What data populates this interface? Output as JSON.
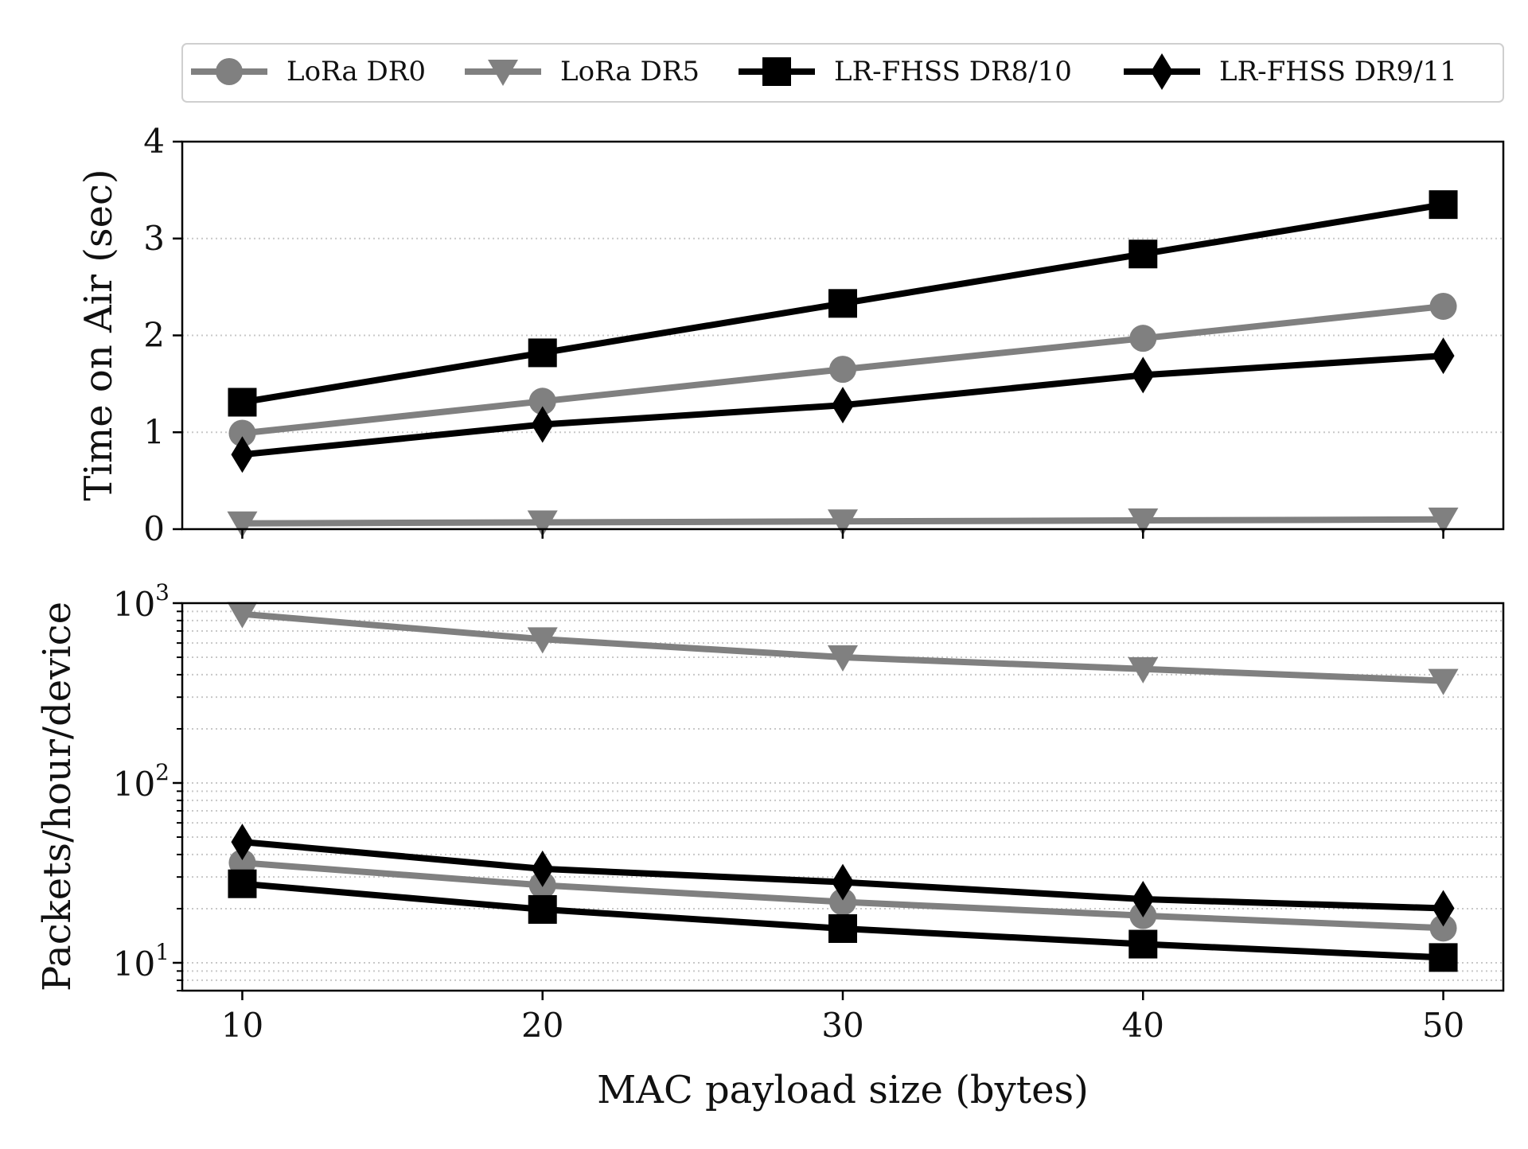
{
  "legend": {
    "placement": "top",
    "entries": [
      {
        "label": "LoRa DR0",
        "series": 0
      },
      {
        "label": "LoRa DR5",
        "series": 1
      },
      {
        "label": "LR-FHSS DR8/10",
        "series": 2
      },
      {
        "label": "LR-FHSS DR9/11",
        "series": 3
      }
    ]
  },
  "style": {
    "series_colors": [
      "#808080",
      "#808080",
      "#000000",
      "#000000"
    ],
    "series_markers": [
      "circle",
      "triangle-down",
      "square",
      "diamond"
    ],
    "grid_color": "#c8c8c8"
  },
  "chart_data": [
    {
      "type": "line",
      "panel": "top",
      "title": "",
      "xlabel": "",
      "ylabel": "Time on Air (sec)",
      "x": [
        10,
        20,
        30,
        40,
        50
      ],
      "xlim": [
        8,
        52
      ],
      "ylim": [
        0,
        4
      ],
      "y_scale": "linear",
      "yticks": [
        0,
        1,
        2,
        3,
        4
      ],
      "ytick_labels": [
        "0",
        "1",
        "2",
        "3",
        "4"
      ],
      "grid": "horizontal dotted",
      "series": [
        {
          "name": "LoRa DR0",
          "values": [
            0.99,
            1.32,
            1.65,
            1.97,
            2.3
          ]
        },
        {
          "name": "LoRa DR5",
          "values": [
            0.06,
            0.07,
            0.08,
            0.09,
            0.1
          ]
        },
        {
          "name": "LR-FHSS DR8/10",
          "values": [
            1.31,
            1.82,
            2.33,
            2.84,
            3.35
          ]
        },
        {
          "name": "LR-FHSS DR9/11",
          "values": [
            0.77,
            1.08,
            1.28,
            1.59,
            1.79
          ]
        }
      ]
    },
    {
      "type": "line",
      "panel": "bottom",
      "title": "",
      "xlabel": "MAC payload size (bytes)",
      "ylabel": "Packets/hour/device",
      "x": [
        10,
        20,
        30,
        40,
        50
      ],
      "xlim": [
        8,
        52
      ],
      "xticks": [
        10,
        20,
        30,
        40,
        50
      ],
      "xtick_labels": [
        "10",
        "20",
        "30",
        "40",
        "50"
      ],
      "ylim": [
        7,
        1000
      ],
      "y_scale": "log",
      "yticks": [
        10,
        100,
        1000
      ],
      "ytick_labels": [
        {
          "base": "10",
          "exp": "1"
        },
        {
          "base": "10",
          "exp": "2"
        },
        {
          "base": "10",
          "exp": "3"
        }
      ],
      "grid": "horizontal dotted, major and minor",
      "series": [
        {
          "name": "LoRa DR0",
          "values": [
            36,
            27,
            21.8,
            18.3,
            15.6
          ]
        },
        {
          "name": "LoRa DR5",
          "values": [
            870,
            630,
            500,
            430,
            370
          ]
        },
        {
          "name": "LR-FHSS DR8/10",
          "values": [
            27.5,
            19.8,
            15.5,
            12.7,
            10.7
          ]
        },
        {
          "name": "LR-FHSS DR9/11",
          "values": [
            47,
            33.3,
            28.1,
            22.6,
            20.1
          ]
        }
      ]
    }
  ]
}
